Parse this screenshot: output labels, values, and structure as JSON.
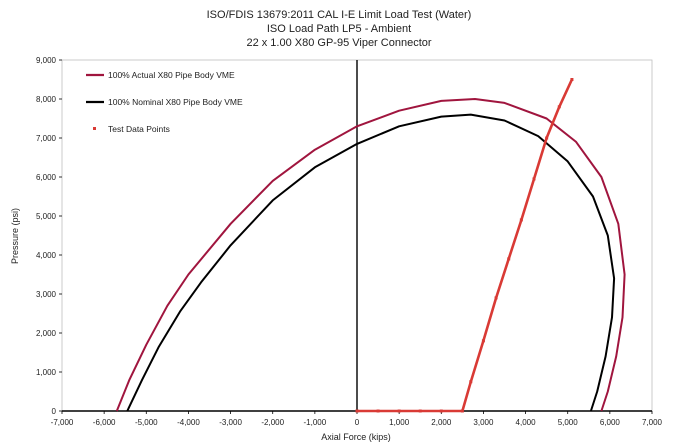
{
  "chart_data": {
    "type": "line",
    "title_lines": [
      "ISO/FDIS 13679:2011 CAL I-E Limit Load Test (Water)",
      "ISO Load Path LP5 - Ambient",
      "22 x 1.00 X80 GP-95 Viper Connector"
    ],
    "xlabel": "Axial Force (kips)",
    "ylabel": "Pressure (psi)",
    "xlim": [
      -7000,
      7000
    ],
    "ylim": [
      0,
      9000
    ],
    "x_ticks": [
      "-7,000",
      "-6,000",
      "-5,000",
      "-4,000",
      "-3,000",
      "-2,000",
      "-1,000",
      "0",
      "1,000",
      "2,000",
      "3,000",
      "4,000",
      "5,000",
      "6,000",
      "7,000"
    ],
    "y_ticks": [
      "0",
      "1,000",
      "2,000",
      "3,000",
      "4,000",
      "5,000",
      "6,000",
      "7,000",
      "8,000",
      "9,000"
    ],
    "grid": false,
    "legend_position": "top-left",
    "series": [
      {
        "name": "100% Actual X80 Pipe Body VME",
        "style": "line",
        "color": "#A0153E",
        "points": [
          [
            -5700,
            0
          ],
          [
            -5400,
            800
          ],
          [
            -5000,
            1700
          ],
          [
            -4500,
            2700
          ],
          [
            -4000,
            3500
          ],
          [
            -3000,
            4800
          ],
          [
            -2000,
            5900
          ],
          [
            -1000,
            6700
          ],
          [
            0,
            7300
          ],
          [
            1000,
            7700
          ],
          [
            2000,
            7950
          ],
          [
            2800,
            8000
          ],
          [
            3500,
            7900
          ],
          [
            4500,
            7500
          ],
          [
            5200,
            6900
          ],
          [
            5800,
            6000
          ],
          [
            6200,
            4800
          ],
          [
            6350,
            3500
          ],
          [
            6300,
            2400
          ],
          [
            6150,
            1400
          ],
          [
            5950,
            500
          ],
          [
            5800,
            0
          ]
        ]
      },
      {
        "name": "100% Nominal X80 Pipe Body VME",
        "style": "line",
        "color": "#000000",
        "points": [
          [
            -5450,
            0
          ],
          [
            -5100,
            800
          ],
          [
            -4700,
            1650
          ],
          [
            -4200,
            2550
          ],
          [
            -3700,
            3300
          ],
          [
            -3000,
            4250
          ],
          [
            -2000,
            5400
          ],
          [
            -1000,
            6250
          ],
          [
            0,
            6850
          ],
          [
            1000,
            7300
          ],
          [
            2000,
            7550
          ],
          [
            2700,
            7600
          ],
          [
            3500,
            7450
          ],
          [
            4300,
            7050
          ],
          [
            5000,
            6400
          ],
          [
            5600,
            5500
          ],
          [
            5950,
            4500
          ],
          [
            6100,
            3400
          ],
          [
            6050,
            2400
          ],
          [
            5900,
            1400
          ],
          [
            5700,
            500
          ],
          [
            5550,
            0
          ]
        ]
      },
      {
        "name": "Test Data Points",
        "style": "points",
        "color": "#D93A35",
        "points": [
          [
            0,
            0
          ],
          [
            500,
            0
          ],
          [
            1000,
            0
          ],
          [
            1500,
            0
          ],
          [
            2000,
            0
          ],
          [
            2500,
            0
          ],
          [
            2700,
            750
          ],
          [
            3000,
            1800
          ],
          [
            3300,
            2900
          ],
          [
            3600,
            3900
          ],
          [
            3900,
            4900
          ],
          [
            4200,
            5950
          ],
          [
            4500,
            7000
          ],
          [
            4800,
            7800
          ],
          [
            5100,
            8500
          ]
        ]
      }
    ]
  }
}
